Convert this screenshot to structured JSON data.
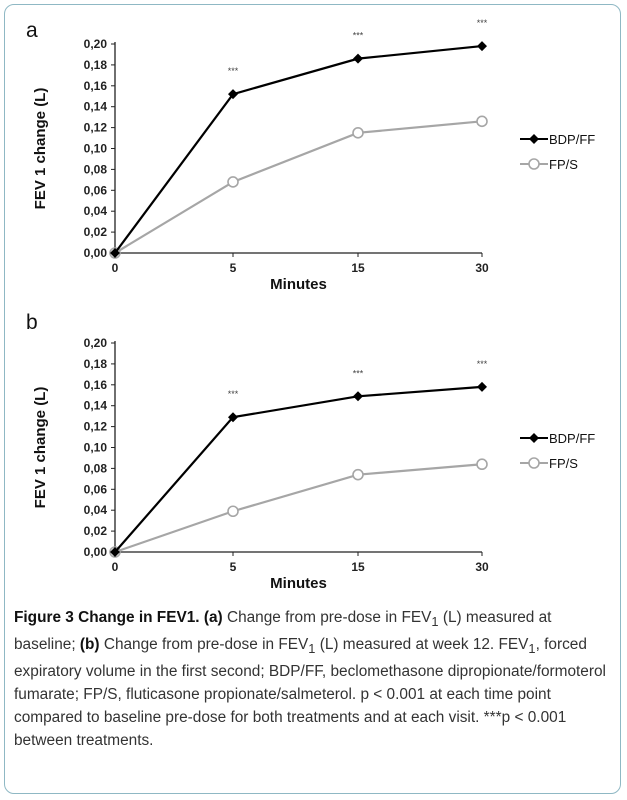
{
  "chart_data": [
    {
      "type": "line",
      "panel_label": "a",
      "xlabel": "Minutes",
      "ylabel": "FEV 1 change (L)",
      "categories": [
        "0",
        "5",
        "15",
        "30"
      ],
      "ylim": [
        0,
        0.2
      ],
      "yticks": [
        "0,00",
        "0,02",
        "0,04",
        "0,06",
        "0,08",
        "0,10",
        "0,12",
        "0,14",
        "0,16",
        "0,18",
        "0,20"
      ],
      "series": [
        {
          "name": "BDP/FF",
          "values": [
            0.0,
            0.152,
            0.186,
            0.198
          ],
          "color": "#000000",
          "marker": "diamond"
        },
        {
          "name": "FP/S",
          "values": [
            0.0,
            0.068,
            0.115,
            0.126
          ],
          "color": "#a6a6a6",
          "marker": "open-circle"
        }
      ],
      "annotations": [
        "",
        "***",
        "***",
        "***"
      ],
      "legend": "right",
      "grid": false
    },
    {
      "type": "line",
      "panel_label": "b",
      "xlabel": "Minutes",
      "ylabel": "FEV 1 change (L)",
      "categories": [
        "0",
        "5",
        "15",
        "30"
      ],
      "ylim": [
        0,
        0.2
      ],
      "yticks": [
        "0,00",
        "0,02",
        "0,04",
        "0,06",
        "0,08",
        "0,10",
        "0,12",
        "0,14",
        "0,16",
        "0,18",
        "0,20"
      ],
      "series": [
        {
          "name": "BDP/FF",
          "values": [
            0.0,
            0.129,
            0.149,
            0.158
          ],
          "color": "#000000",
          "marker": "diamond"
        },
        {
          "name": "FP/S",
          "values": [
            0.0,
            0.039,
            0.074,
            0.084
          ],
          "color": "#a6a6a6",
          "marker": "open-circle"
        }
      ],
      "annotations": [
        "",
        "***",
        "***",
        "***"
      ],
      "legend": "right",
      "grid": false
    }
  ],
  "caption": {
    "figure_label": "Figure 3 Change in FEV1.",
    "a_label": "(a)",
    "a_text_1": " Change from pre-dose in FEV",
    "a_sub": "1",
    "a_text_2": " (L) measured at baseline; ",
    "b_label": "(b)",
    "b_text_1": " Change from pre-dose in FEV",
    "b_sub": "1",
    "b_text_2": " (L) measured at week 12. FEV",
    "b_sub2": "1",
    "rest": ", forced expiratory volume in the first second; BDP/FF, beclomethasone dipropionate/formoterol fumarate; FP/S, fluticasone propionate/salmeterol. p < 0.001 at each time point compared to baseline pre-dose for both treatments and at each visit. ***p < 0.001 between treatments."
  }
}
